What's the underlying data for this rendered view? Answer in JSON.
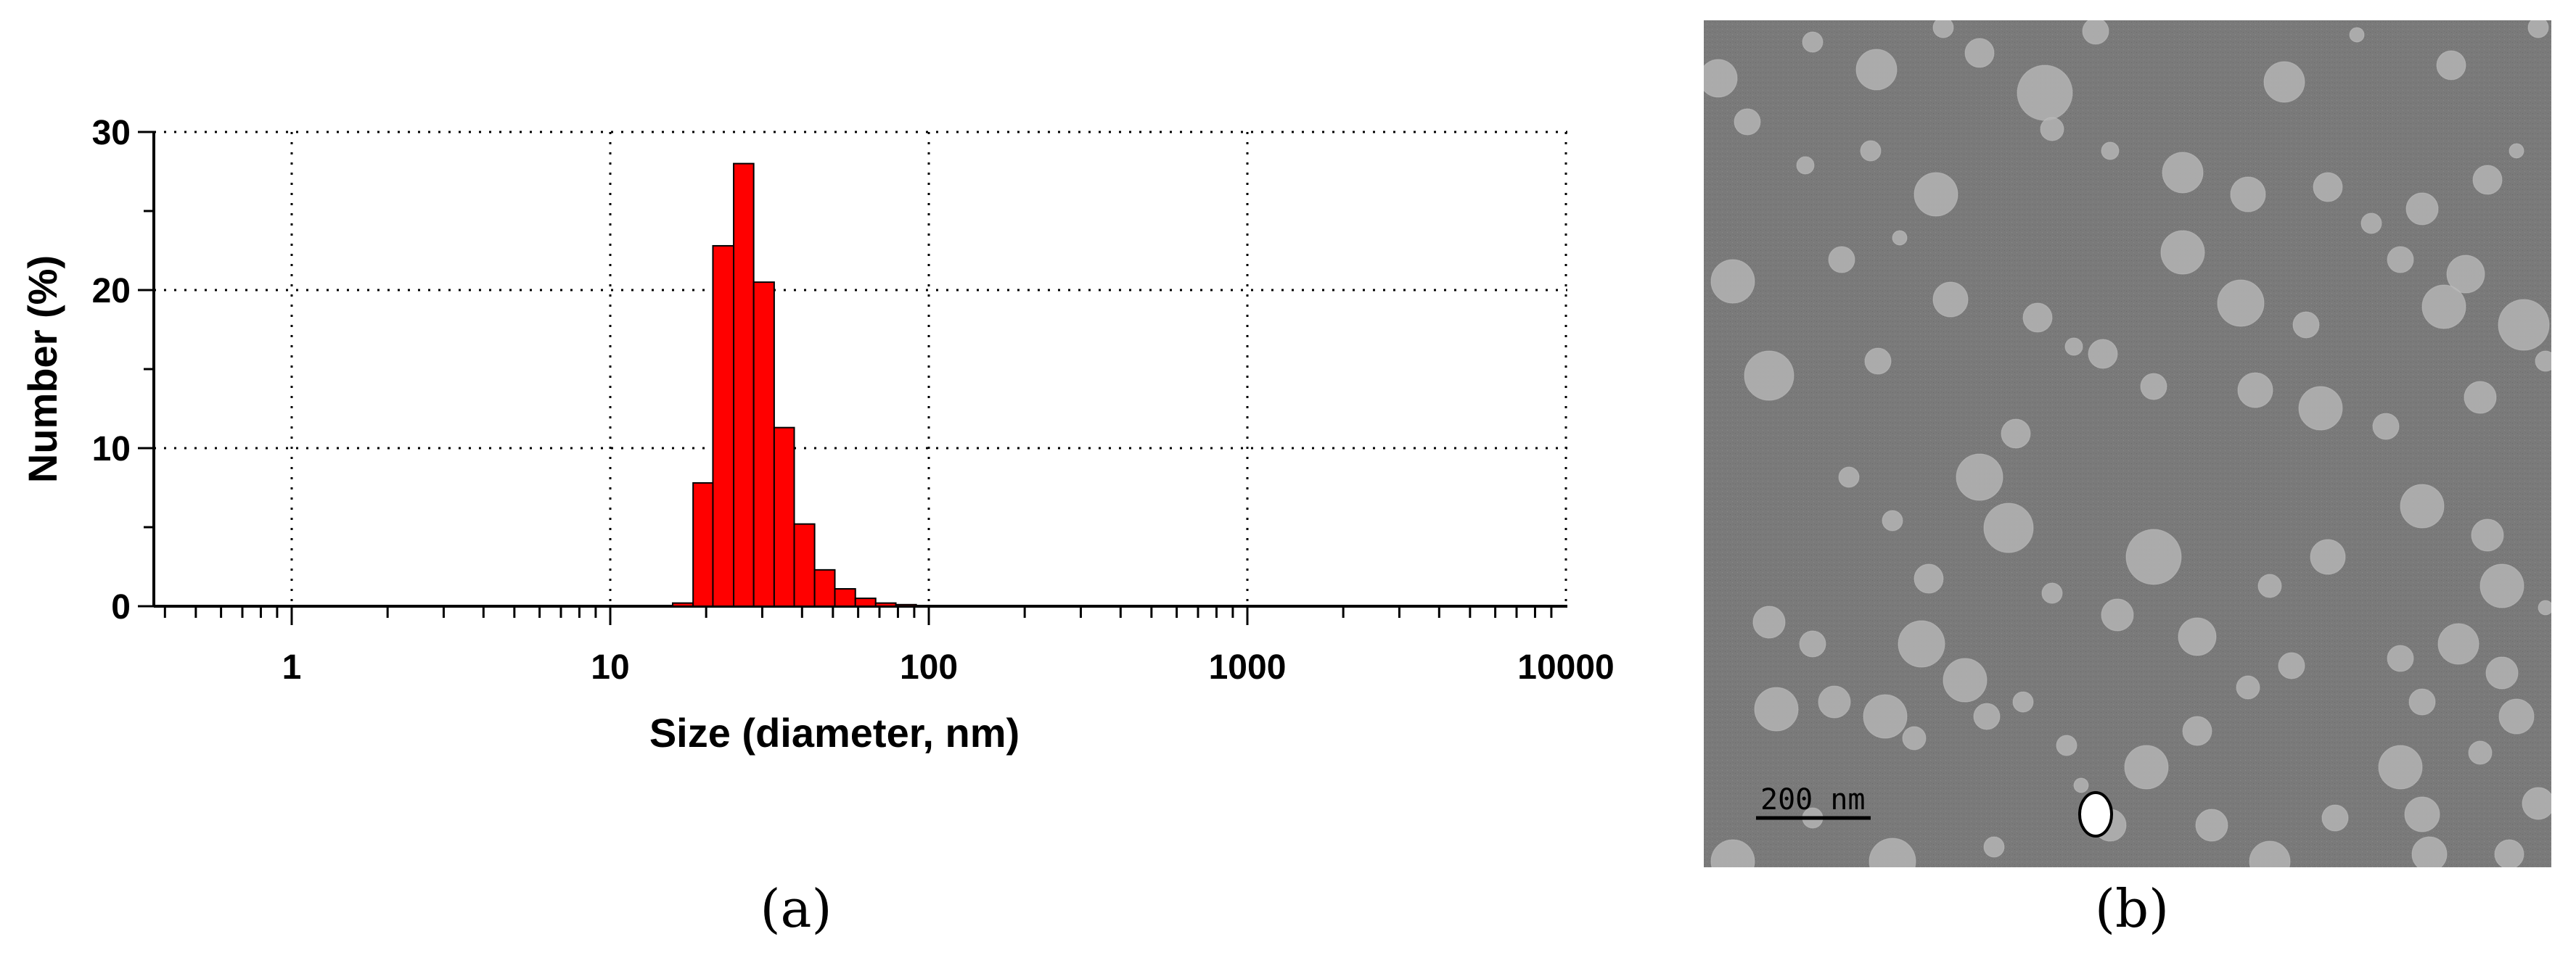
{
  "chart_data": {
    "type": "bar",
    "xscale": "log",
    "xlim": [
      0.4,
      10000
    ],
    "ylim": [
      0,
      30
    ],
    "xlabel": "Size (diameter, nm)",
    "ylabel": "Number (%)",
    "xticks": [
      1,
      10,
      100,
      1000,
      10000
    ],
    "xtick_labels": [
      "1",
      "10",
      "100",
      "1000",
      "10000"
    ],
    "yticks": [
      0,
      10,
      20,
      30
    ],
    "ytick_labels": [
      "0",
      "10",
      "20",
      "30"
    ],
    "grid": true,
    "bar_color": "#ff0000",
    "bins": [
      {
        "from": 15.7,
        "to": 18.2,
        "value": 0.2
      },
      {
        "from": 18.2,
        "to": 21.0,
        "value": 7.8
      },
      {
        "from": 21.0,
        "to": 24.4,
        "value": 22.8
      },
      {
        "from": 24.4,
        "to": 28.2,
        "value": 28.0
      },
      {
        "from": 28.2,
        "to": 32.7,
        "value": 20.5
      },
      {
        "from": 32.7,
        "to": 37.8,
        "value": 11.3
      },
      {
        "from": 37.8,
        "to": 43.8,
        "value": 5.2
      },
      {
        "from": 43.8,
        "to": 50.7,
        "value": 2.3
      },
      {
        "from": 50.7,
        "to": 58.8,
        "value": 1.1
      },
      {
        "from": 58.8,
        "to": 68.1,
        "value": 0.5
      },
      {
        "from": 68.1,
        "to": 78.8,
        "value": 0.2
      },
      {
        "from": 78.8,
        "to": 91.3,
        "value": 0.1
      }
    ]
  },
  "panels": {
    "a_label": "(a)",
    "b_label": "(b)"
  },
  "micrograph": {
    "scale_bar_label": "200 nm",
    "background_color": "#7b7b7b",
    "particle_color": "#b4b4b4"
  }
}
